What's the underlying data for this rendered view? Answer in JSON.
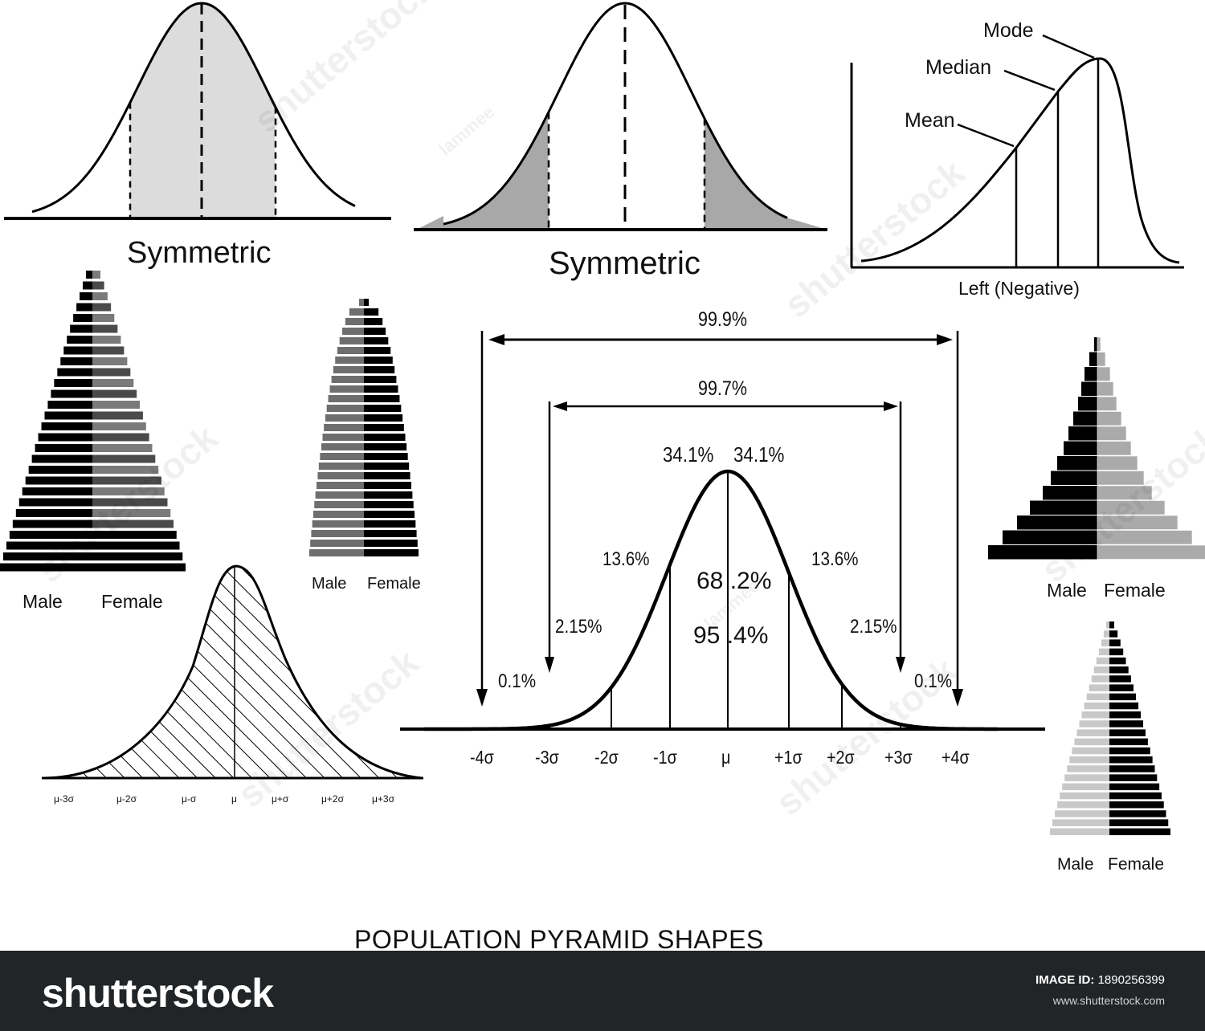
{
  "panels": {
    "symmetric_top_left": {
      "title": "Symmetric"
    },
    "symmetric_top_middle": {
      "title": "Symmetric"
    },
    "skew_left": {
      "caption": "Left  (Negative)",
      "mode_label": "Mode",
      "median_label": "Median",
      "mean_label": "Mean"
    },
    "pyramid_1": {
      "male": "Male",
      "female": "Female"
    },
    "pyramid_2": {
      "male": "Male",
      "female": "Female"
    },
    "pyramid_3": {
      "male": "Male",
      "female": "Female"
    },
    "pyramid_4": {
      "male": "Male",
      "female": "Female"
    },
    "small_normal": {
      "ticks": [
        "μ-3σ",
        "μ-2σ",
        "μ-σ",
        "μ",
        "μ+σ",
        "μ+2σ",
        "μ+3σ"
      ]
    },
    "big_normal": {
      "span_999": "99.9%",
      "span_997": "99.7%",
      "left_center": "34.1%",
      "right_center": "34.1%",
      "left_136": "13.6%",
      "right_136": "13.6%",
      "left_215": "2.15%",
      "right_215": "2.15%",
      "left_01": "0.1%",
      "right_01": "0.1%",
      "pct_682": "68 .2%",
      "pct_954": "95  .4%",
      "axis_ticks": [
        "-4σ",
        "-3σ",
        "-2σ",
        "-1σ",
        "μ",
        "+1σ",
        "+2σ",
        "+3σ",
        "+4σ"
      ]
    }
  },
  "main_caption": "POPULATION PYRAMID SHAPES",
  "footer": {
    "brand": "shutterstock",
    "image_id_label": "IMAGE ID:",
    "image_id": "1890256399",
    "site": "www.shutterstock.com"
  },
  "watermarks": [
    "shutterstock",
    "shutterstock",
    "shutterstock",
    "shutterstock",
    "shutterstock",
    "shutterstock",
    "lammee",
    "lammee"
  ],
  "colors": {
    "line": "#000000",
    "light_fill": "#dcdcdc",
    "mid_fill": "#a8a8a8",
    "dark_bar": "#2b2b2b",
    "grey_bar": "#6e6e6e",
    "footer": "#222527"
  }
}
